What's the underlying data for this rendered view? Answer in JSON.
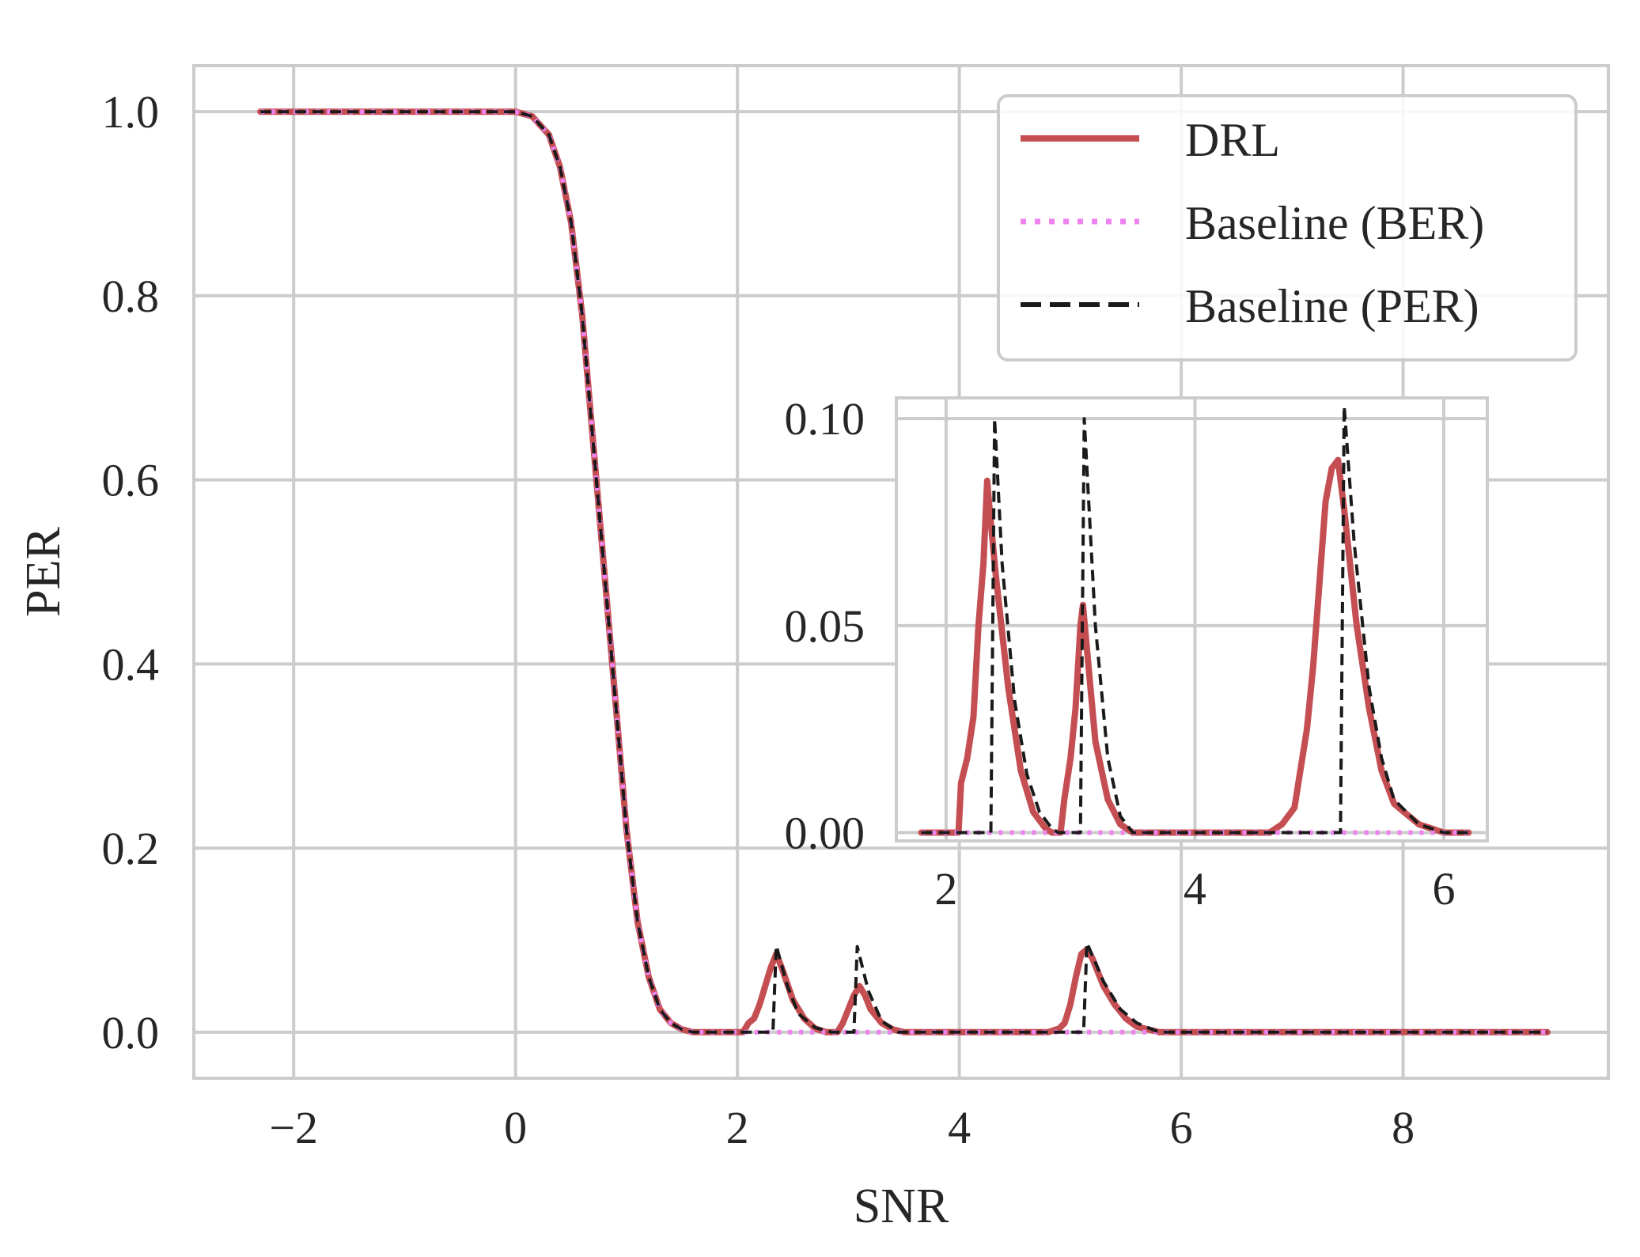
{
  "chart_data": {
    "type": "line",
    "xlabel": "SNR",
    "ylabel": "PER",
    "xlim": [
      -2.9,
      9.85
    ],
    "ylim": [
      -0.05,
      1.05
    ],
    "xticks": [
      -2,
      0,
      2,
      4,
      6,
      8
    ],
    "xtick_labels": [
      "−2",
      "0",
      "2",
      "4",
      "6",
      "8"
    ],
    "yticks": [
      0.0,
      0.2,
      0.4,
      0.6,
      0.8,
      1.0
    ],
    "ytick_labels": [
      "0.0",
      "0.2",
      "0.4",
      "0.6",
      "0.8",
      "1.0"
    ],
    "grid": true,
    "legend_position": "upper-right",
    "colors": {
      "drl": "#c44e52",
      "baseline_ber": "#ee82ee",
      "baseline_per": "#1a1a1a",
      "grid": "#cccccc",
      "spine": "#cccccc"
    },
    "series": [
      {
        "name": "DRL",
        "style": "solid",
        "points": [
          [
            -2.3,
            1.0
          ],
          [
            0.0,
            1.0
          ],
          [
            0.15,
            0.995
          ],
          [
            0.3,
            0.975
          ],
          [
            0.4,
            0.94
          ],
          [
            0.5,
            0.88
          ],
          [
            0.6,
            0.78
          ],
          [
            0.7,
            0.64
          ],
          [
            0.8,
            0.5
          ],
          [
            0.9,
            0.36
          ],
          [
            1.0,
            0.22
          ],
          [
            1.1,
            0.12
          ],
          [
            1.2,
            0.06
          ],
          [
            1.3,
            0.025
          ],
          [
            1.4,
            0.01
          ],
          [
            1.5,
            0.003
          ],
          [
            1.6,
            0.0
          ],
          [
            2.05,
            0.0
          ],
          [
            2.1,
            0.01
          ],
          [
            2.15,
            0.015
          ],
          [
            2.2,
            0.03
          ],
          [
            2.25,
            0.05
          ],
          [
            2.3,
            0.07
          ],
          [
            2.35,
            0.085
          ],
          [
            2.4,
            0.07
          ],
          [
            2.5,
            0.035
          ],
          [
            2.6,
            0.015
          ],
          [
            2.7,
            0.004
          ],
          [
            2.8,
            0.0
          ],
          [
            2.9,
            0.0
          ],
          [
            2.95,
            0.01
          ],
          [
            3.0,
            0.025
          ],
          [
            3.05,
            0.04
          ],
          [
            3.1,
            0.05
          ],
          [
            3.15,
            0.04
          ],
          [
            3.2,
            0.025
          ],
          [
            3.3,
            0.01
          ],
          [
            3.4,
            0.003
          ],
          [
            3.5,
            0.0
          ],
          [
            4.8,
            0.0
          ],
          [
            4.9,
            0.004
          ],
          [
            4.95,
            0.01
          ],
          [
            5.0,
            0.03
          ],
          [
            5.05,
            0.06
          ],
          [
            5.1,
            0.085
          ],
          [
            5.15,
            0.09
          ],
          [
            5.2,
            0.08
          ],
          [
            5.3,
            0.05
          ],
          [
            5.4,
            0.03
          ],
          [
            5.5,
            0.015
          ],
          [
            5.6,
            0.006
          ],
          [
            5.8,
            0.0
          ],
          [
            9.3,
            0.0
          ]
        ]
      },
      {
        "name": "Baseline (BER)",
        "style": "dotted",
        "points": [
          [
            -2.3,
            1.0
          ],
          [
            0.0,
            1.0
          ],
          [
            0.15,
            0.995
          ],
          [
            0.3,
            0.975
          ],
          [
            0.4,
            0.94
          ],
          [
            0.5,
            0.88
          ],
          [
            0.6,
            0.78
          ],
          [
            0.7,
            0.64
          ],
          [
            0.8,
            0.5
          ],
          [
            0.9,
            0.36
          ],
          [
            1.0,
            0.22
          ],
          [
            1.1,
            0.12
          ],
          [
            1.2,
            0.06
          ],
          [
            1.3,
            0.025
          ],
          [
            1.4,
            0.01
          ],
          [
            1.5,
            0.003
          ],
          [
            1.6,
            0.0
          ],
          [
            9.3,
            0.0
          ]
        ]
      },
      {
        "name": "Baseline (PER)",
        "style": "dashed",
        "points": [
          [
            -2.3,
            1.0
          ],
          [
            0.0,
            1.0
          ],
          [
            0.15,
            0.995
          ],
          [
            0.3,
            0.975
          ],
          [
            0.4,
            0.94
          ],
          [
            0.5,
            0.88
          ],
          [
            0.6,
            0.78
          ],
          [
            0.7,
            0.64
          ],
          [
            0.8,
            0.5
          ],
          [
            0.9,
            0.36
          ],
          [
            1.0,
            0.22
          ],
          [
            1.1,
            0.12
          ],
          [
            1.2,
            0.06
          ],
          [
            1.3,
            0.025
          ],
          [
            1.4,
            0.01
          ],
          [
            1.5,
            0.003
          ],
          [
            1.6,
            0.0
          ],
          [
            2.32,
            0.0
          ],
          [
            2.35,
            0.094
          ],
          [
            2.45,
            0.05
          ],
          [
            2.55,
            0.02
          ],
          [
            2.7,
            0.005
          ],
          [
            2.85,
            0.0
          ],
          [
            3.05,
            0.0
          ],
          [
            3.08,
            0.093
          ],
          [
            3.18,
            0.045
          ],
          [
            3.3,
            0.012
          ],
          [
            3.45,
            0.0
          ],
          [
            5.12,
            0.0
          ],
          [
            5.15,
            0.097
          ],
          [
            5.3,
            0.055
          ],
          [
            5.45,
            0.025
          ],
          [
            5.6,
            0.01
          ],
          [
            5.8,
            0.0
          ],
          [
            9.3,
            0.0
          ]
        ]
      }
    ],
    "inset": {
      "xlim": [
        1.6,
        6.35
      ],
      "ylim": [
        -0.002,
        0.105
      ],
      "xticks": [
        2,
        4,
        6
      ],
      "xtick_labels": [
        "2",
        "4",
        "6"
      ],
      "yticks": [
        0.0,
        0.05,
        0.1
      ],
      "ytick_labels": [
        "0.00",
        "0.05",
        "0.10"
      ],
      "series": [
        {
          "name": "DRL",
          "style": "solid",
          "points": [
            [
              1.8,
              0.0
            ],
            [
              2.1,
              0.0
            ],
            [
              2.12,
              0.012
            ],
            [
              2.17,
              0.018
            ],
            [
              2.22,
              0.028
            ],
            [
              2.26,
              0.05
            ],
            [
              2.3,
              0.065
            ],
            [
              2.33,
              0.085
            ],
            [
              2.35,
              0.078
            ],
            [
              2.4,
              0.062
            ],
            [
              2.5,
              0.035
            ],
            [
              2.6,
              0.015
            ],
            [
              2.7,
              0.005
            ],
            [
              2.8,
              0.001
            ],
            [
              2.85,
              0.0
            ],
            [
              2.92,
              0.0
            ],
            [
              2.95,
              0.008
            ],
            [
              3.0,
              0.018
            ],
            [
              3.04,
              0.03
            ],
            [
              3.08,
              0.05
            ],
            [
              3.1,
              0.055
            ],
            [
              3.13,
              0.045
            ],
            [
              3.2,
              0.022
            ],
            [
              3.3,
              0.008
            ],
            [
              3.4,
              0.002
            ],
            [
              3.5,
              0.0
            ],
            [
              4.6,
              0.0
            ],
            [
              4.7,
              0.002
            ],
            [
              4.8,
              0.006
            ],
            [
              4.9,
              0.025
            ],
            [
              4.95,
              0.04
            ],
            [
              5.0,
              0.06
            ],
            [
              5.05,
              0.08
            ],
            [
              5.1,
              0.088
            ],
            [
              5.15,
              0.09
            ],
            [
              5.2,
              0.078
            ],
            [
              5.3,
              0.05
            ],
            [
              5.4,
              0.03
            ],
            [
              5.5,
              0.015
            ],
            [
              5.6,
              0.007
            ],
            [
              5.8,
              0.002
            ],
            [
              6.0,
              0.0
            ],
            [
              6.2,
              0.0
            ]
          ]
        },
        {
          "name": "Baseline (BER)",
          "style": "dotted",
          "points": [
            [
              1.8,
              0.0
            ],
            [
              6.2,
              0.0
            ]
          ]
        },
        {
          "name": "Baseline (PER)",
          "style": "dashed",
          "points": [
            [
              1.8,
              0.0
            ],
            [
              2.36,
              0.0
            ],
            [
              2.39,
              0.1
            ],
            [
              2.45,
              0.065
            ],
            [
              2.55,
              0.032
            ],
            [
              2.65,
              0.014
            ],
            [
              2.75,
              0.005
            ],
            [
              2.85,
              0.001
            ],
            [
              2.9,
              0.0
            ],
            [
              3.08,
              0.0
            ],
            [
              3.11,
              0.1
            ],
            [
              3.2,
              0.05
            ],
            [
              3.3,
              0.018
            ],
            [
              3.4,
              0.004
            ],
            [
              3.5,
              0.0
            ],
            [
              5.17,
              0.0
            ],
            [
              5.2,
              0.103
            ],
            [
              5.28,
              0.07
            ],
            [
              5.4,
              0.035
            ],
            [
              5.5,
              0.018
            ],
            [
              5.6,
              0.008
            ],
            [
              5.8,
              0.002
            ],
            [
              6.0,
              0.0
            ],
            [
              6.2,
              0.0
            ]
          ]
        }
      ]
    }
  }
}
